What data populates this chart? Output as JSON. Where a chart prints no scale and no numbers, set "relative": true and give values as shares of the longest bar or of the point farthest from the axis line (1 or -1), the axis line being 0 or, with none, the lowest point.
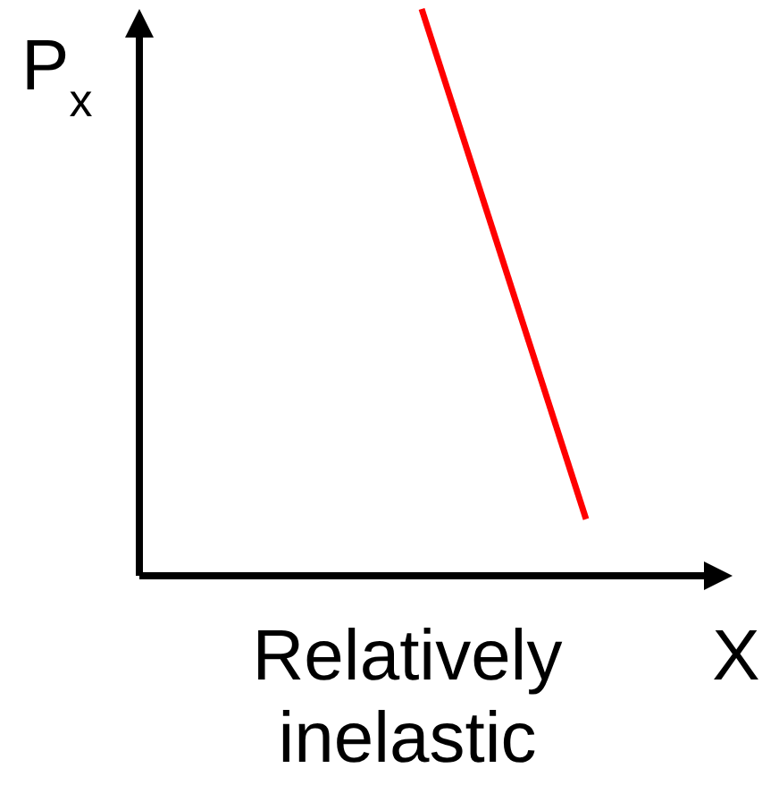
{
  "chart_data": {
    "type": "line",
    "relative": true,
    "categories": [
      null,
      null
    ],
    "xlabel": "X",
    "ylabel": "P$_{x}$",
    "annotations": [
      "Relatively inelastic"
    ],
    "series": [
      {
        "color": "#ff0000",
        "values": [
          1,
          0.1
        ]
      }
    ]
  }
}
